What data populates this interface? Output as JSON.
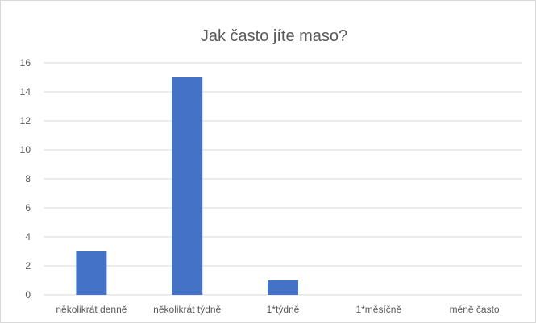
{
  "chart_data": {
    "type": "bar",
    "title": "Jak často jíte maso?",
    "categories": [
      "několikrát denně",
      "několikrát týdně",
      "1*týdně",
      "1*měsíčně",
      "méně často"
    ],
    "values": [
      3,
      15,
      1,
      0,
      0
    ],
    "ylim": [
      0,
      16
    ],
    "yticks": [
      0,
      2,
      4,
      6,
      8,
      10,
      12,
      14,
      16
    ],
    "xlabel": "",
    "ylabel": "",
    "grid": true,
    "legend": "none",
    "colors": {
      "bar": "#4472c4",
      "grid": "#d9d9d9",
      "text": "#595959"
    }
  }
}
